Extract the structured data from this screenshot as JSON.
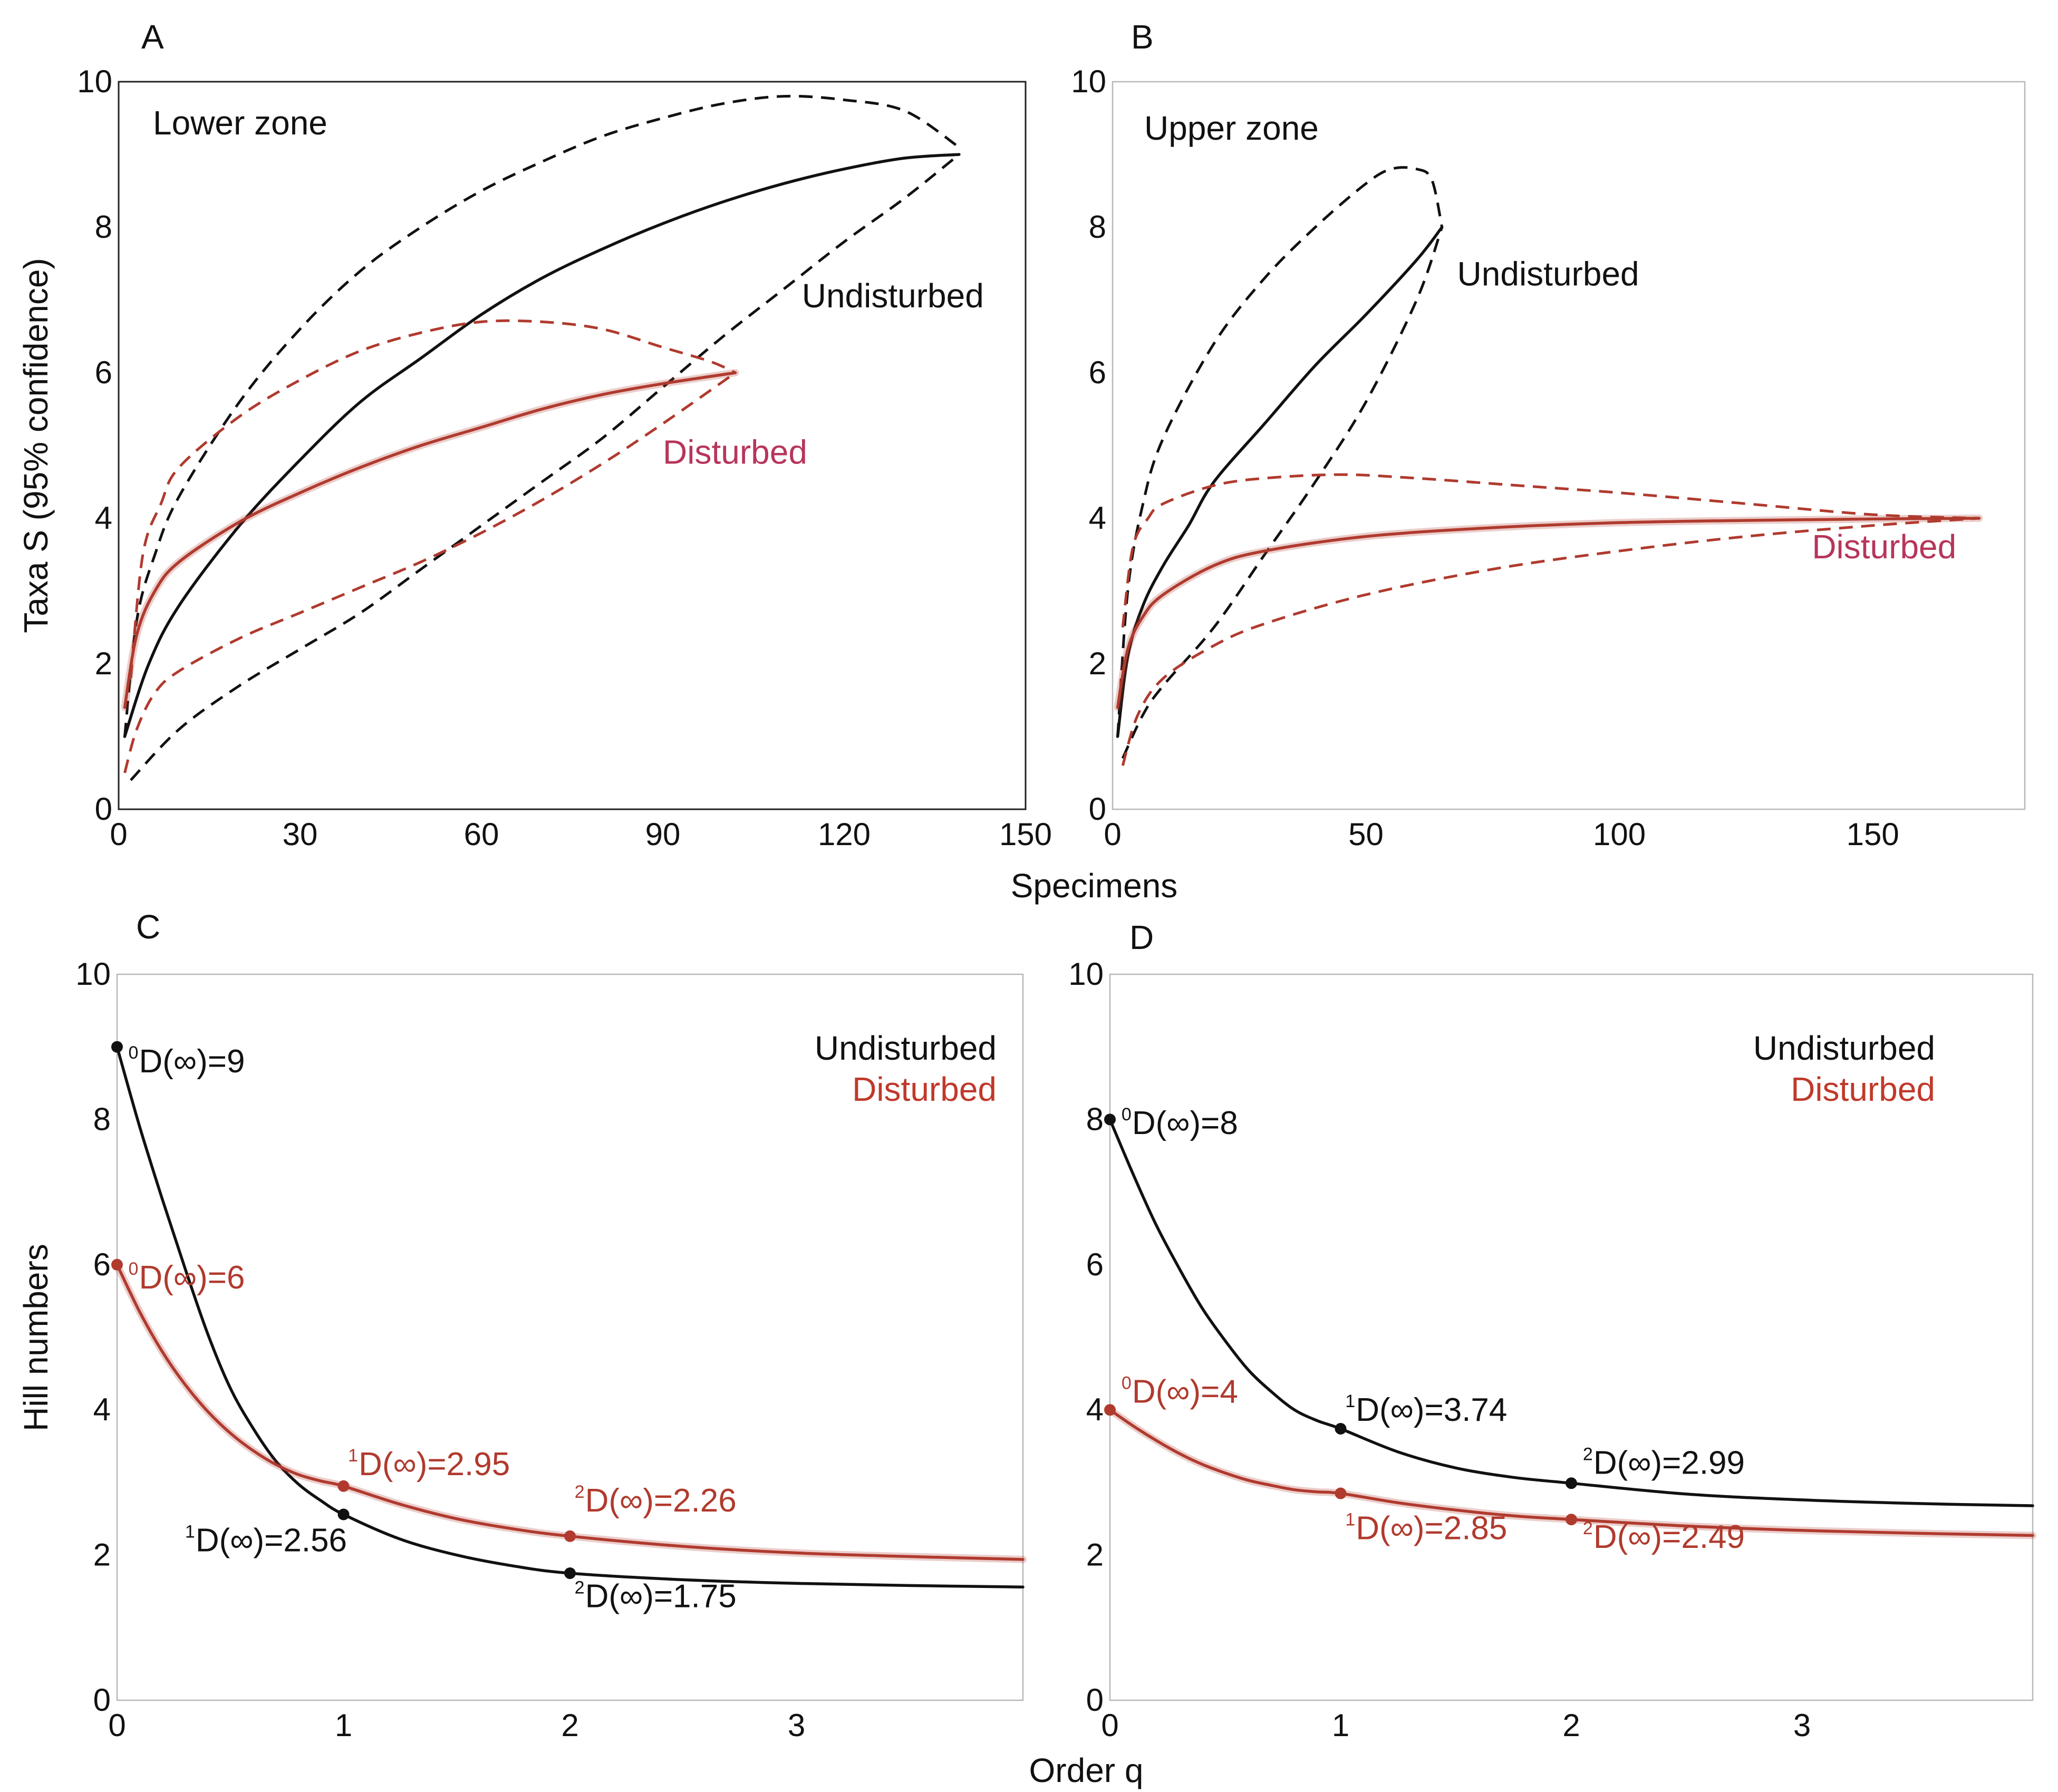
{
  "figure": {
    "shared_xlabel_top": "Specimens",
    "shared_xlabel_bottom": "Order q",
    "ylabel_top": "Taxa S (95% confidence)",
    "ylabel_bottom": "Hill numbers"
  },
  "colors": {
    "undisturbed": "#111111",
    "disturbed": "#b03a2e",
    "disturbed_label": "#b7355a"
  },
  "chart_data": [
    {
      "panel": "A",
      "type": "line",
      "title": "Lower zone",
      "xlabel": "Specimens",
      "ylabel": "Taxa S (95% confidence)",
      "xlim": [
        0,
        150
      ],
      "ylim": [
        0,
        10
      ],
      "xticks": [
        0,
        30,
        60,
        90,
        120,
        150
      ],
      "yticks": [
        0,
        2,
        4,
        6,
        8,
        10
      ],
      "series": [
        {
          "name": "Undisturbed",
          "style": "solid",
          "color": "#111111",
          "x": [
            1,
            5,
            10,
            20,
            30,
            40,
            50,
            60,
            70,
            80,
            90,
            100,
            110,
            120,
            130,
            139
          ],
          "y": [
            1.0,
            2.0,
            2.8,
            3.9,
            4.8,
            5.6,
            6.2,
            6.8,
            7.3,
            7.7,
            8.05,
            8.35,
            8.6,
            8.8,
            8.95,
            9.0
          ]
        },
        {
          "name": "Undisturbed upper 95%",
          "style": "dashed",
          "color": "#111111",
          "x": [
            1,
            3,
            6,
            10,
            20,
            30,
            40,
            50,
            60,
            70,
            80,
            90,
            100,
            110,
            120,
            130,
            139
          ],
          "y": [
            1.0,
            2.6,
            3.5,
            4.3,
            5.6,
            6.6,
            7.4,
            8.0,
            8.5,
            8.9,
            9.25,
            9.5,
            9.7,
            9.8,
            9.75,
            9.6,
            9.1
          ]
        },
        {
          "name": "Undisturbed lower 95%",
          "style": "dashed",
          "color": "#111111",
          "x": [
            2,
            10,
            20,
            30,
            40,
            50,
            60,
            70,
            80,
            90,
            100,
            110,
            120,
            130,
            139
          ],
          "y": [
            0.4,
            1.1,
            1.7,
            2.2,
            2.7,
            3.3,
            3.9,
            4.5,
            5.1,
            5.8,
            6.5,
            7.15,
            7.8,
            8.4,
            9.0
          ]
        },
        {
          "name": "Disturbed",
          "style": "solid",
          "color": "#b03a2e",
          "x": [
            1,
            3,
            6,
            10,
            20,
            30,
            40,
            50,
            60,
            70,
            80,
            90,
            102
          ],
          "y": [
            1.4,
            2.4,
            3.0,
            3.4,
            3.95,
            4.35,
            4.7,
            5.0,
            5.25,
            5.5,
            5.7,
            5.85,
            6.0
          ]
        },
        {
          "name": "Disturbed upper 95%",
          "style": "dashed",
          "color": "#b03a2e",
          "x": [
            2,
            4,
            7,
            10,
            20,
            30,
            40,
            50,
            60,
            70,
            80,
            90,
            98,
            102
          ],
          "y": [
            1.8,
            3.5,
            4.2,
            4.7,
            5.4,
            5.9,
            6.3,
            6.55,
            6.7,
            6.7,
            6.6,
            6.35,
            6.15,
            6.0
          ]
        },
        {
          "name": "Disturbed lower 95%",
          "style": "dashed",
          "color": "#b03a2e",
          "x": [
            1,
            3,
            6,
            10,
            20,
            30,
            40,
            50,
            60,
            70,
            80,
            90,
            102
          ],
          "y": [
            0.5,
            1.1,
            1.6,
            1.9,
            2.35,
            2.7,
            3.05,
            3.4,
            3.8,
            4.25,
            4.75,
            5.3,
            6.0
          ]
        }
      ],
      "annotations": [
        {
          "text": "Undisturbed",
          "x": 113,
          "y": 6.9,
          "color": "#111111"
        },
        {
          "text": "Disturbed",
          "x": 90,
          "y": 4.75,
          "color": "#b7355a"
        }
      ]
    },
    {
      "panel": "B",
      "type": "line",
      "title": "Upper zone",
      "xlabel": "Specimens",
      "ylabel": "Taxa S (95% confidence)",
      "xlim": [
        0,
        180
      ],
      "ylim": [
        0,
        10
      ],
      "xticks": [
        0,
        50,
        100,
        150
      ],
      "yticks": [
        0,
        2,
        4,
        6,
        8,
        10
      ],
      "series": [
        {
          "name": "Undisturbed",
          "style": "solid",
          "color": "#111111",
          "x": [
            1,
            3,
            6,
            10,
            15,
            20,
            30,
            40,
            50,
            60,
            65
          ],
          "y": [
            1.0,
            2.1,
            2.8,
            3.35,
            3.9,
            4.5,
            5.3,
            6.1,
            6.8,
            7.55,
            8.0
          ]
        },
        {
          "name": "Undisturbed upper 95%",
          "style": "dashed",
          "color": "#111111",
          "x": [
            1,
            3,
            6,
            10,
            20,
            30,
            40,
            50,
            55,
            60,
            63,
            65
          ],
          "y": [
            1.0,
            3.0,
            4.2,
            5.1,
            6.4,
            7.3,
            8.0,
            8.6,
            8.8,
            8.8,
            8.65,
            8.0
          ]
        },
        {
          "name": "Undisturbed lower 95%",
          "style": "dashed",
          "color": "#111111",
          "x": [
            2,
            6,
            10,
            20,
            30,
            40,
            50,
            60,
            65
          ],
          "y": [
            0.7,
            1.3,
            1.7,
            2.5,
            3.5,
            4.5,
            5.6,
            7.0,
            8.0
          ]
        },
        {
          "name": "Disturbed",
          "style": "solid",
          "color": "#b03a2e",
          "x": [
            1,
            3,
            6,
            10,
            20,
            30,
            50,
            75,
            100,
            125,
            150,
            171
          ],
          "y": [
            1.4,
            2.2,
            2.65,
            2.95,
            3.35,
            3.55,
            3.75,
            3.87,
            3.94,
            3.97,
            3.99,
            4.0
          ]
        },
        {
          "name": "Disturbed upper 95%",
          "style": "dashed",
          "color": "#b03a2e",
          "x": [
            2,
            4,
            7,
            10,
            20,
            30,
            45,
            60,
            80,
            100,
            125,
            150,
            171
          ],
          "y": [
            2.5,
            3.6,
            4.0,
            4.2,
            4.45,
            4.55,
            4.6,
            4.55,
            4.45,
            4.35,
            4.2,
            4.05,
            4.0
          ]
        },
        {
          "name": "Disturbed lower 95%",
          "style": "dashed",
          "color": "#b03a2e",
          "x": [
            2,
            5,
            10,
            20,
            30,
            50,
            75,
            100,
            125,
            150,
            171
          ],
          "y": [
            0.6,
            1.3,
            1.8,
            2.25,
            2.55,
            2.95,
            3.3,
            3.55,
            3.75,
            3.9,
            4.0
          ]
        }
      ],
      "annotations": [
        {
          "text": "Undisturbed",
          "x": 68,
          "y": 7.2,
          "color": "#111111"
        },
        {
          "text": "Disturbed",
          "x": 138,
          "y": 3.45,
          "color": "#b7355a"
        }
      ]
    },
    {
      "panel": "C",
      "type": "line",
      "xlabel": "Order q",
      "ylabel": "Hill numbers",
      "xlim": [
        0,
        4
      ],
      "ylim": [
        0,
        10
      ],
      "xticks": [
        0,
        1,
        2,
        3
      ],
      "yticks": [
        0,
        2,
        4,
        6,
        8,
        10
      ],
      "legend": [
        "Undisturbed",
        "Disturbed"
      ],
      "legend_position": "top-right",
      "series": [
        {
          "name": "Undisturbed",
          "color": "#111111",
          "x": [
            0,
            0.1,
            0.2,
            0.3,
            0.4,
            0.5,
            0.6,
            0.7,
            0.8,
            0.9,
            1.0,
            1.25,
            1.5,
            1.75,
            2.0,
            2.5,
            3.0,
            3.5,
            4.0
          ],
          "y": [
            9.0,
            7.9,
            6.9,
            5.95,
            5.05,
            4.3,
            3.75,
            3.3,
            2.98,
            2.75,
            2.56,
            2.22,
            2.0,
            1.85,
            1.75,
            1.66,
            1.61,
            1.58,
            1.56
          ]
        },
        {
          "name": "Disturbed",
          "color": "#b03a2e",
          "x": [
            0,
            0.1,
            0.2,
            0.3,
            0.4,
            0.5,
            0.6,
            0.7,
            0.8,
            0.9,
            1.0,
            1.25,
            1.5,
            1.75,
            2.0,
            2.5,
            3.0,
            3.5,
            4.0
          ],
          "y": [
            6.0,
            5.35,
            4.8,
            4.35,
            3.98,
            3.68,
            3.44,
            3.25,
            3.11,
            3.02,
            2.95,
            2.7,
            2.5,
            2.36,
            2.26,
            2.12,
            2.03,
            1.98,
            1.94
          ]
        }
      ],
      "points": [
        {
          "series": "Undisturbed",
          "x": 0,
          "y": 9,
          "sup": "0",
          "label": "D(∞)=9",
          "lx": 0.05,
          "ly": 8.65
        },
        {
          "series": "Undisturbed",
          "x": 1,
          "y": 2.56,
          "sup": "1",
          "label": "D(∞)=2.56",
          "lx": 0.3,
          "ly": 2.05
        },
        {
          "series": "Undisturbed",
          "x": 2,
          "y": 1.75,
          "sup": "2",
          "label": "D(∞)=1.75",
          "lx": 2.02,
          "ly": 1.28
        },
        {
          "series": "Disturbed",
          "x": 0,
          "y": 6,
          "sup": "0",
          "label": "D(∞)=6",
          "lx": 0.05,
          "ly": 5.67
        },
        {
          "series": "Disturbed",
          "x": 1,
          "y": 2.95,
          "sup": "1",
          "label": "D(∞)=2.95",
          "lx": 1.02,
          "ly": 3.1
        },
        {
          "series": "Disturbed",
          "x": 2,
          "y": 2.26,
          "sup": "2",
          "label": "D(∞)=2.26",
          "lx": 2.02,
          "ly": 2.6
        }
      ]
    },
    {
      "panel": "D",
      "type": "line",
      "xlabel": "Order q",
      "ylabel": "Hill numbers",
      "xlim": [
        0,
        4
      ],
      "ylim": [
        0,
        10
      ],
      "xticks": [
        0,
        1,
        2,
        3
      ],
      "yticks": [
        0,
        2,
        4,
        6,
        8,
        10
      ],
      "legend": [
        "Undisturbed",
        "Disturbed"
      ],
      "legend_position": "top-right",
      "series": [
        {
          "name": "Undisturbed",
          "color": "#111111",
          "x": [
            0,
            0.1,
            0.2,
            0.3,
            0.4,
            0.5,
            0.6,
            0.7,
            0.8,
            0.9,
            1.0,
            1.25,
            1.5,
            1.75,
            2.0,
            2.5,
            3.0,
            3.5,
            4.0
          ],
          "y": [
            8.0,
            7.25,
            6.55,
            5.95,
            5.4,
            4.95,
            4.55,
            4.25,
            4.0,
            3.85,
            3.74,
            3.42,
            3.2,
            3.07,
            2.99,
            2.84,
            2.76,
            2.71,
            2.68
          ]
        },
        {
          "name": "Disturbed",
          "color": "#b03a2e",
          "x": [
            0,
            0.1,
            0.2,
            0.3,
            0.4,
            0.5,
            0.6,
            0.7,
            0.8,
            0.9,
            1.0,
            1.25,
            1.5,
            1.75,
            2.0,
            2.5,
            3.0,
            3.5,
            4.0
          ],
          "y": [
            4.0,
            3.78,
            3.58,
            3.4,
            3.25,
            3.13,
            3.03,
            2.96,
            2.9,
            2.87,
            2.85,
            2.72,
            2.62,
            2.54,
            2.49,
            2.4,
            2.34,
            2.3,
            2.27
          ]
        }
      ],
      "points": [
        {
          "series": "Undisturbed",
          "x": 0,
          "y": 8,
          "sup": "0",
          "label": "D(∞)=8",
          "lx": 0.05,
          "ly": 7.8
        },
        {
          "series": "Undisturbed",
          "x": 1,
          "y": 3.74,
          "sup": "1",
          "label": "D(∞)=3.74",
          "lx": 1.02,
          "ly": 3.85
        },
        {
          "series": "Undisturbed",
          "x": 2,
          "y": 2.99,
          "sup": "2",
          "label": "D(∞)=2.99",
          "lx": 2.05,
          "ly": 3.12
        },
        {
          "series": "Disturbed",
          "x": 0,
          "y": 4,
          "sup": "0",
          "label": "D(∞)=4",
          "lx": 0.05,
          "ly": 4.1
        },
        {
          "series": "Disturbed",
          "x": 1,
          "y": 2.85,
          "sup": "1",
          "label": "D(∞)=2.85",
          "lx": 1.02,
          "ly": 2.22
        },
        {
          "series": "Disturbed",
          "x": 2,
          "y": 2.49,
          "sup": "2",
          "label": "D(∞)=2.49",
          "lx": 2.05,
          "ly": 2.1
        }
      ]
    }
  ]
}
